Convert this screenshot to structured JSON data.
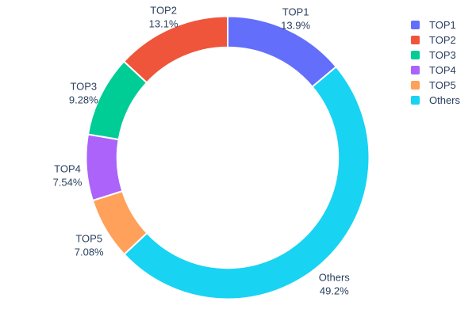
{
  "chart_data": {
    "type": "pie",
    "subtype": "donut",
    "title": "",
    "hole": 0.78,
    "labels": [
      "TOP1",
      "TOP2",
      "TOP3",
      "TOP4",
      "TOP5",
      "Others"
    ],
    "values": [
      13.9,
      13.1,
      9.28,
      7.54,
      7.08,
      49.2
    ],
    "pct_labels": [
      "13.9%",
      "13.1%",
      "9.28%",
      "7.54%",
      "7.08%",
      "49.2%"
    ],
    "colors": [
      "#636EFA",
      "#EF553B",
      "#00CC96",
      "#AB63FA",
      "#FFA15A",
      "#19D3F3"
    ],
    "clockwise_order_from_top": [
      "TOP1",
      "Others",
      "TOP5",
      "TOP4",
      "TOP3",
      "TOP2"
    ],
    "slice_border_color": "#ffffff",
    "text_color": "#2a3f5f",
    "background_color": "#ffffff",
    "legend_position": "right",
    "legend": {
      "entries": [
        "TOP1",
        "TOP2",
        "TOP3",
        "TOP4",
        "TOP5",
        "Others"
      ]
    }
  }
}
